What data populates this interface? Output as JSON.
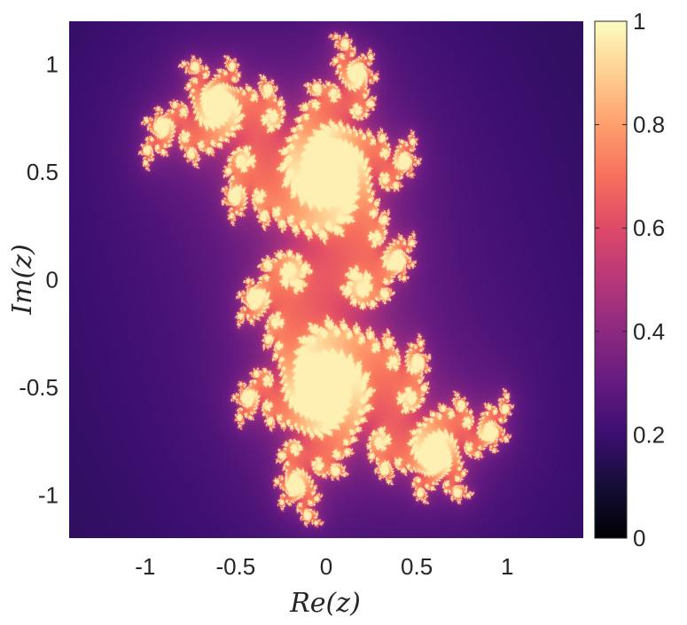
{
  "chart_data": {
    "type": "heatmap",
    "title": "",
    "xlabel": "Re(z)",
    "ylabel": "Im(z)",
    "xlim": [
      -1.42,
      1.42
    ],
    "ylim": [
      -1.2,
      1.2
    ],
    "x_ticks": [
      {
        "value": -1,
        "label": "-1"
      },
      {
        "value": -0.5,
        "label": "-0.5"
      },
      {
        "value": 0,
        "label": "0"
      },
      {
        "value": 0.5,
        "label": "0.5"
      },
      {
        "value": 1,
        "label": "1"
      }
    ],
    "y_ticks": [
      {
        "value": 1,
        "label": "1"
      },
      {
        "value": 0.5,
        "label": "0.5"
      },
      {
        "value": 0,
        "label": "0"
      },
      {
        "value": -0.5,
        "label": "-0.5"
      },
      {
        "value": -1,
        "label": "-1"
      }
    ],
    "colorbar": {
      "range": [
        0,
        1
      ],
      "colormap": "magma",
      "ticks": [
        {
          "value": 0,
          "label": "0"
        },
        {
          "value": 0.2,
          "label": "0.2"
        },
        {
          "value": 0.4,
          "label": "0.4"
        },
        {
          "value": 0.6,
          "label": "0.6"
        },
        {
          "value": 0.8,
          "label": "0.8"
        },
        {
          "value": 1,
          "label": "1"
        }
      ]
    },
    "grid": false,
    "map": {
      "kind": "julia-set",
      "c_real": 0.285,
      "c_imag": 0.48
    }
  }
}
